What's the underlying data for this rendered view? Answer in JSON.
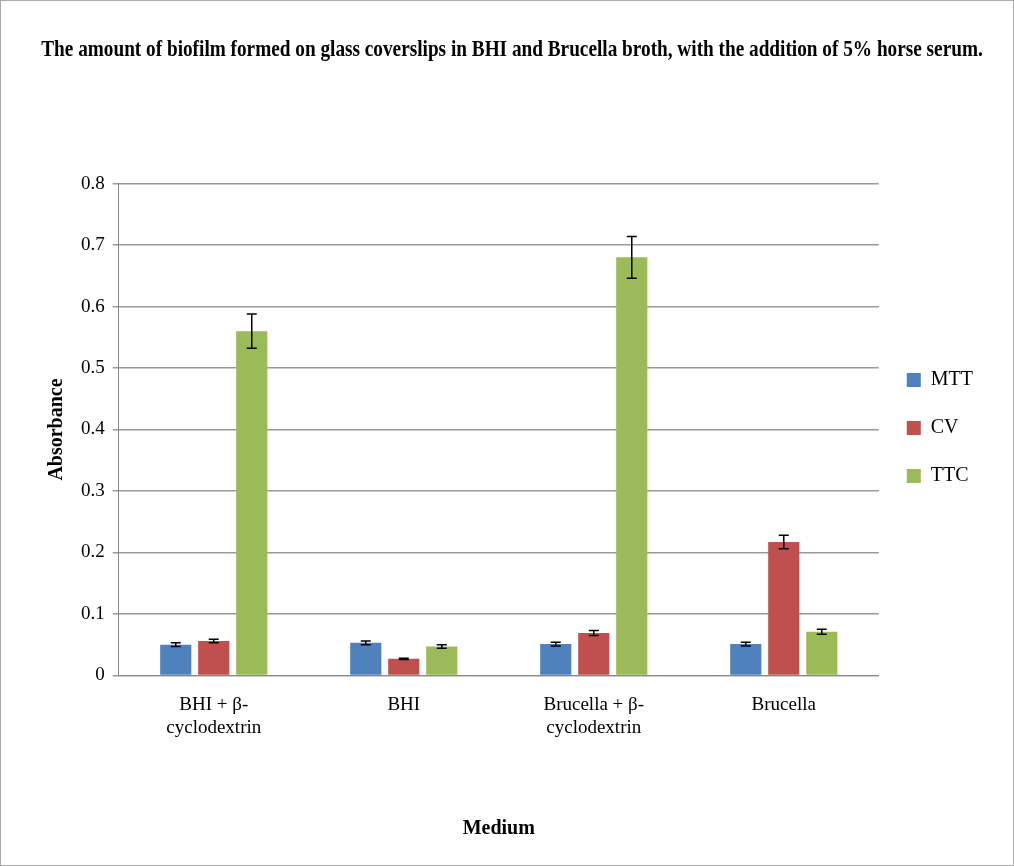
{
  "chart_data": {
    "type": "bar",
    "title": "The amount of biofilm formed on glass coverslips in BHI and Brucella broth, with the addition of 5% horse serum.",
    "xlabel": "Medium",
    "ylabel": "Absorbance",
    "categories": [
      "BHI + β-cyclodextrin",
      "BHI",
      "Brucella + β-cyclodextrin",
      "Brucella"
    ],
    "series": [
      {
        "name": "MTT",
        "color": "#4f81bd",
        "values": [
          0.05,
          0.053,
          0.051,
          0.051
        ],
        "errors": [
          0.003,
          0.003,
          0.003,
          0.003
        ]
      },
      {
        "name": "CV",
        "color": "#c0504d",
        "values": [
          0.056,
          0.027,
          0.069,
          0.217
        ],
        "errors": [
          0.003,
          0.001,
          0.004,
          0.011
        ]
      },
      {
        "name": "TTC",
        "color": "#9bbb59",
        "values": [
          0.56,
          0.047,
          0.68,
          0.071
        ],
        "errors": [
          0.028,
          0.003,
          0.034,
          0.004
        ]
      }
    ],
    "ylim": [
      0,
      0.8
    ],
    "yticks": [
      0,
      0.1,
      0.2,
      0.3,
      0.4,
      0.5,
      0.6,
      0.7,
      0.8
    ],
    "grid": "y",
    "legend": "right"
  }
}
